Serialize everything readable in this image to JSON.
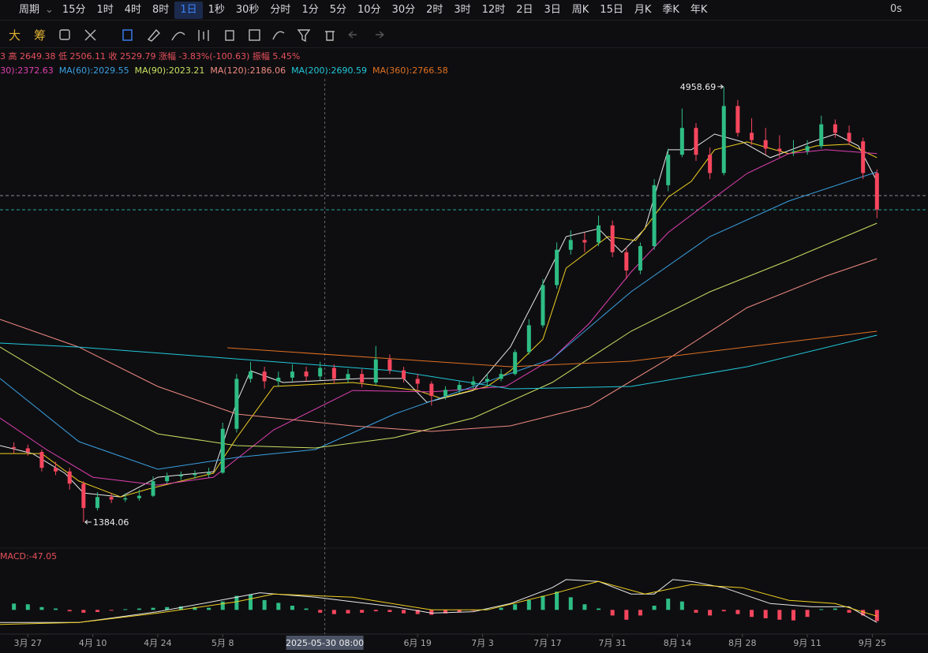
{
  "toolbar": {
    "period_label": "周期",
    "periods": [
      "15分",
      "1时",
      "4时",
      "8时",
      "1日",
      "1秒",
      "30秒",
      "分时",
      "1分",
      "5分",
      "10分",
      "30分",
      "2时",
      "3时",
      "12时",
      "2日",
      "3日",
      "周K",
      "15日",
      "月K",
      "季K",
      "年K"
    ],
    "active": 4,
    "timer": "0s",
    "tools": [
      "大",
      "筹"
    ]
  },
  "chart_data": {
    "type": "candlestick",
    "info": "3 高 2649.38 低 2506.11 收 2529.79 涨幅 -3.83%(-100.63) 振幅 5.45%",
    "x": [
      -3,
      0,
      3,
      6,
      9,
      12,
      15,
      18,
      21,
      24,
      27,
      30,
      33,
      36,
      39,
      42,
      45,
      48,
      51,
      54,
      57,
      60,
      63,
      66,
      69,
      72,
      75,
      78,
      81,
      84,
      87,
      90,
      93,
      96,
      99,
      102,
      105,
      108,
      111,
      114,
      117,
      120,
      123,
      126,
      129,
      132,
      135,
      138,
      141,
      144,
      147,
      150,
      153,
      156,
      159,
      162,
      165,
      168,
      171,
      174,
      177,
      180,
      183
    ],
    "ohlc": [
      [
        2000,
        2040,
        1950,
        1990
      ],
      [
        1990,
        2020,
        1930,
        1960
      ],
      [
        1960,
        1980,
        1800,
        1830
      ],
      [
        1830,
        1880,
        1770,
        1800
      ],
      [
        1800,
        1830,
        1650,
        1700
      ],
      [
        1700,
        1720,
        1384.06,
        1500
      ],
      [
        1500,
        1630,
        1480,
        1590
      ],
      [
        1590,
        1620,
        1540,
        1570
      ],
      [
        1570,
        1620,
        1550,
        1580
      ],
      [
        1580,
        1650,
        1560,
        1600
      ],
      [
        1600,
        1760,
        1590,
        1720
      ],
      [
        1720,
        1790,
        1700,
        1760
      ],
      [
        1760,
        1800,
        1730,
        1770
      ],
      [
        1770,
        1810,
        1740,
        1780
      ],
      [
        1780,
        1830,
        1750,
        1790
      ],
      [
        1790,
        2200,
        1780,
        2150
      ],
      [
        2150,
        2600,
        2120,
        2560
      ],
      [
        2560,
        2700,
        2530,
        2620
      ],
      [
        2620,
        2660,
        2480,
        2540
      ],
      [
        2540,
        2620,
        2500,
        2570
      ],
      [
        2570,
        2680,
        2540,
        2620
      ],
      [
        2620,
        2660,
        2540,
        2580
      ],
      [
        2580,
        2700,
        2550,
        2650
      ],
      [
        2650,
        2680,
        2520,
        2560
      ],
      [
        2560,
        2640,
        2530,
        2600
      ],
      [
        2600,
        2640,
        2490,
        2530
      ],
      [
        2530,
        2830,
        2510,
        2720
      ],
      [
        2720,
        2760,
        2600,
        2630
      ],
      [
        2630,
        2660,
        2530,
        2560
      ],
      [
        2560,
        2600,
        2470,
        2520
      ],
      [
        2520,
        2540,
        2340,
        2420
      ],
      [
        2420,
        2500,
        2390,
        2470
      ],
      [
        2470,
        2540,
        2440,
        2510
      ],
      [
        2510,
        2580,
        2480,
        2540
      ],
      [
        2540,
        2600,
        2510,
        2560
      ],
      [
        2560,
        2640,
        2540,
        2600
      ],
      [
        2600,
        2800,
        2590,
        2780
      ],
      [
        2780,
        3050,
        2760,
        3000
      ],
      [
        3000,
        3380,
        2980,
        3330
      ],
      [
        3330,
        3680,
        3300,
        3620
      ],
      [
        3620,
        3780,
        3580,
        3700
      ],
      [
        3700,
        3760,
        3600,
        3680
      ],
      [
        3680,
        3900,
        3650,
        3820
      ],
      [
        3820,
        3860,
        3560,
        3600
      ],
      [
        3600,
        3640,
        3380,
        3450
      ],
      [
        3450,
        3680,
        3420,
        3650
      ],
      [
        3650,
        4200,
        3620,
        4150
      ],
      [
        4150,
        4450,
        4100,
        4400
      ],
      [
        4400,
        4780,
        4380,
        4620
      ],
      [
        4620,
        4660,
        4350,
        4400
      ],
      [
        4400,
        4460,
        4200,
        4250
      ],
      [
        4250,
        4958.69,
        4230,
        4800
      ],
      [
        4800,
        4850,
        4550,
        4580
      ],
      [
        4580,
        4700,
        4480,
        4520
      ],
      [
        4520,
        4620,
        4400,
        4450
      ],
      [
        4450,
        4560,
        4380,
        4430
      ],
      [
        4430,
        4520,
        4390,
        4430
      ],
      [
        4430,
        4520,
        4400,
        4470
      ],
      [
        4470,
        4720,
        4450,
        4650
      ],
      [
        4650,
        4690,
        4540,
        4580
      ],
      [
        4580,
        4640,
        4480,
        4510
      ],
      [
        4510,
        4540,
        4200,
        4250
      ],
      [
        4250,
        4280,
        3880,
        3950
      ]
    ],
    "up_color": "#2ebd85",
    "down_color": "#f6465d",
    "xlim": [
      -6,
      194
    ],
    "ylim": [
      1203,
      5023
    ],
    "xticks": [
      {
        "value": 0,
        "label": "3月 27"
      },
      {
        "value": 14,
        "label": "4月 10"
      },
      {
        "value": 28,
        "label": "4月 24"
      },
      {
        "value": 42,
        "label": "5月 8"
      },
      {
        "value": 84,
        "label": "6月 19"
      },
      {
        "value": 98,
        "label": "7月 3"
      },
      {
        "value": 112,
        "label": "7月 17"
      },
      {
        "value": 126,
        "label": "7月 31"
      },
      {
        "value": 140,
        "label": "8月 14"
      },
      {
        "value": 154,
        "label": "8月 28"
      },
      {
        "value": 168,
        "label": "9月 11"
      },
      {
        "value": 182,
        "label": "9月 25"
      }
    ],
    "high_label": "4958.69",
    "low_label": "1384.06",
    "crosshair": {
      "x": 64,
      "label": "2025-05-30 08:00"
    },
    "price_lines": [
      {
        "value": 4065,
        "color": "#8a8a90"
      },
      {
        "value": 3948,
        "color": "#26a69a"
      }
    ],
    "lines": [
      {
        "color": "#e8e8e8",
        "x": [
          -6,
          1,
          8,
          12,
          20,
          28,
          40,
          45,
          48,
          55,
          72,
          81,
          86,
          96,
          104,
          111,
          116,
          123,
          128,
          133,
          138,
          143,
          148,
          154,
          160,
          169,
          174,
          179,
          183
        ],
        "values": [
          2012,
          1947,
          1785,
          1623,
          1591,
          1753,
          1798,
          2368,
          2627,
          2530,
          2563,
          2563,
          2368,
          2465,
          2822,
          3340,
          3728,
          3793,
          3599,
          3793,
          4441,
          4441,
          4570,
          4506,
          4376,
          4506,
          4570,
          4473,
          4182
        ]
      },
      {
        "color": "#f0d020",
        "x": [
          -6,
          3,
          11,
          20,
          26,
          40,
          45,
          53,
          70,
          84,
          89,
          99,
          104,
          111,
          116,
          125,
          131,
          138,
          143,
          148,
          155,
          164,
          170,
          177,
          183
        ],
        "values": [
          1947,
          1947,
          1721,
          1591,
          1656,
          1786,
          2077,
          2498,
          2530,
          2465,
          2401,
          2498,
          2627,
          2886,
          3469,
          3728,
          3696,
          4052,
          4182,
          4441,
          4506,
          4409,
          4473,
          4486,
          4376
        ]
      },
      {
        "label": "(30):2372.63",
        "color": "#e040b0",
        "x": [
          -6,
          4,
          14,
          28,
          40,
          53,
          70,
          87,
          103,
          113,
          121,
          130,
          138,
          147,
          155,
          164,
          172,
          183
        ],
        "values": [
          2239,
          1980,
          1753,
          1688,
          1753,
          2142,
          2465,
          2453,
          2498,
          2724,
          3016,
          3437,
          3761,
          4020,
          4247,
          4409,
          4441,
          4409
        ]
      },
      {
        "label": "MA(60):2029.55",
        "color": "#3aa0e0",
        "x": [
          -6,
          11,
          28,
          45,
          62,
          79,
          96,
          113,
          130,
          147,
          164,
          183
        ],
        "values": [
          2563,
          2045,
          1818,
          1915,
          1980,
          2271,
          2498,
          2724,
          3275,
          3728,
          4020,
          4259
        ]
      },
      {
        "label": "MA(90):2023.21",
        "color": "#c8e060",
        "x": [
          -6,
          11,
          28,
          45,
          62,
          79,
          96,
          113,
          130,
          147,
          164,
          183
        ],
        "values": [
          2821,
          2433,
          2109,
          2012,
          1993,
          2077,
          2239,
          2530,
          2951,
          3275,
          3534,
          3838
        ]
      },
      {
        "label": "MA(120):2186.06",
        "color": "#f08a80",
        "x": [
          -6,
          11,
          28,
          45,
          70,
          87,
          104,
          121,
          138,
          155,
          172,
          183
        ],
        "values": [
          3048,
          2821,
          2498,
          2271,
          2174,
          2129,
          2174,
          2336,
          2724,
          3145,
          3404,
          3547
        ]
      },
      {
        "label": "MA(200):2690.59",
        "color": "#20c8d8",
        "x": [
          -6,
          11,
          45,
          79,
          104,
          130,
          155,
          183
        ],
        "values": [
          2854,
          2821,
          2724,
          2627,
          2478,
          2498,
          2660,
          2919
        ]
      },
      {
        "label": "MA(360):2766.58",
        "color": "#e07020",
        "x": [
          43,
          79,
          104,
          130,
          155,
          183
        ],
        "values": [
          2815,
          2724,
          2660,
          2705,
          2822,
          2951
        ]
      }
    ],
    "macd": {
      "label": "MACD:-47.05",
      "ylim": [
        -150,
        300
      ],
      "histogram": [
        45,
        40,
        20,
        10,
        -10,
        -20,
        -15,
        -5,
        5,
        10,
        15,
        20,
        25,
        20,
        15,
        60,
        100,
        110,
        70,
        50,
        30,
        10,
        -20,
        -30,
        -25,
        -20,
        -10,
        -15,
        -25,
        -30,
        -35,
        -25,
        -15,
        -5,
        5,
        15,
        40,
        70,
        100,
        130,
        90,
        40,
        10,
        -40,
        -70,
        -40,
        30,
        80,
        60,
        -20,
        -40,
        -10,
        -30,
        -50,
        -60,
        -70,
        -75,
        -50,
        5,
        10,
        -20,
        -40,
        -80
      ],
      "dif": {
        "color": "#e8e8e8",
        "x": [
          -6,
          11,
          28,
          45,
          50,
          62,
          79,
          87,
          96,
          104,
          113,
          116,
          123,
          130,
          135,
          139,
          143,
          150,
          160,
          169,
          177,
          183
        ],
        "values": [
          -90,
          -90,
          -13,
          90,
          122,
          90,
          22,
          -23,
          -13,
          45,
          158,
          216,
          203,
          113,
          113,
          216,
          203,
          158,
          45,
          22,
          22,
          -90
        ]
      },
      "dea": {
        "color": "#f0d020",
        "x": [
          -6,
          11,
          28,
          45,
          53,
          70,
          87,
          99,
          113,
          123,
          133,
          143,
          154,
          164,
          174,
          183
        ],
        "values": [
          -104,
          -90,
          -23,
          58,
          113,
          90,
          0,
          0,
          113,
          203,
          113,
          180,
          158,
          68,
          45,
          -45
        ]
      }
    }
  }
}
